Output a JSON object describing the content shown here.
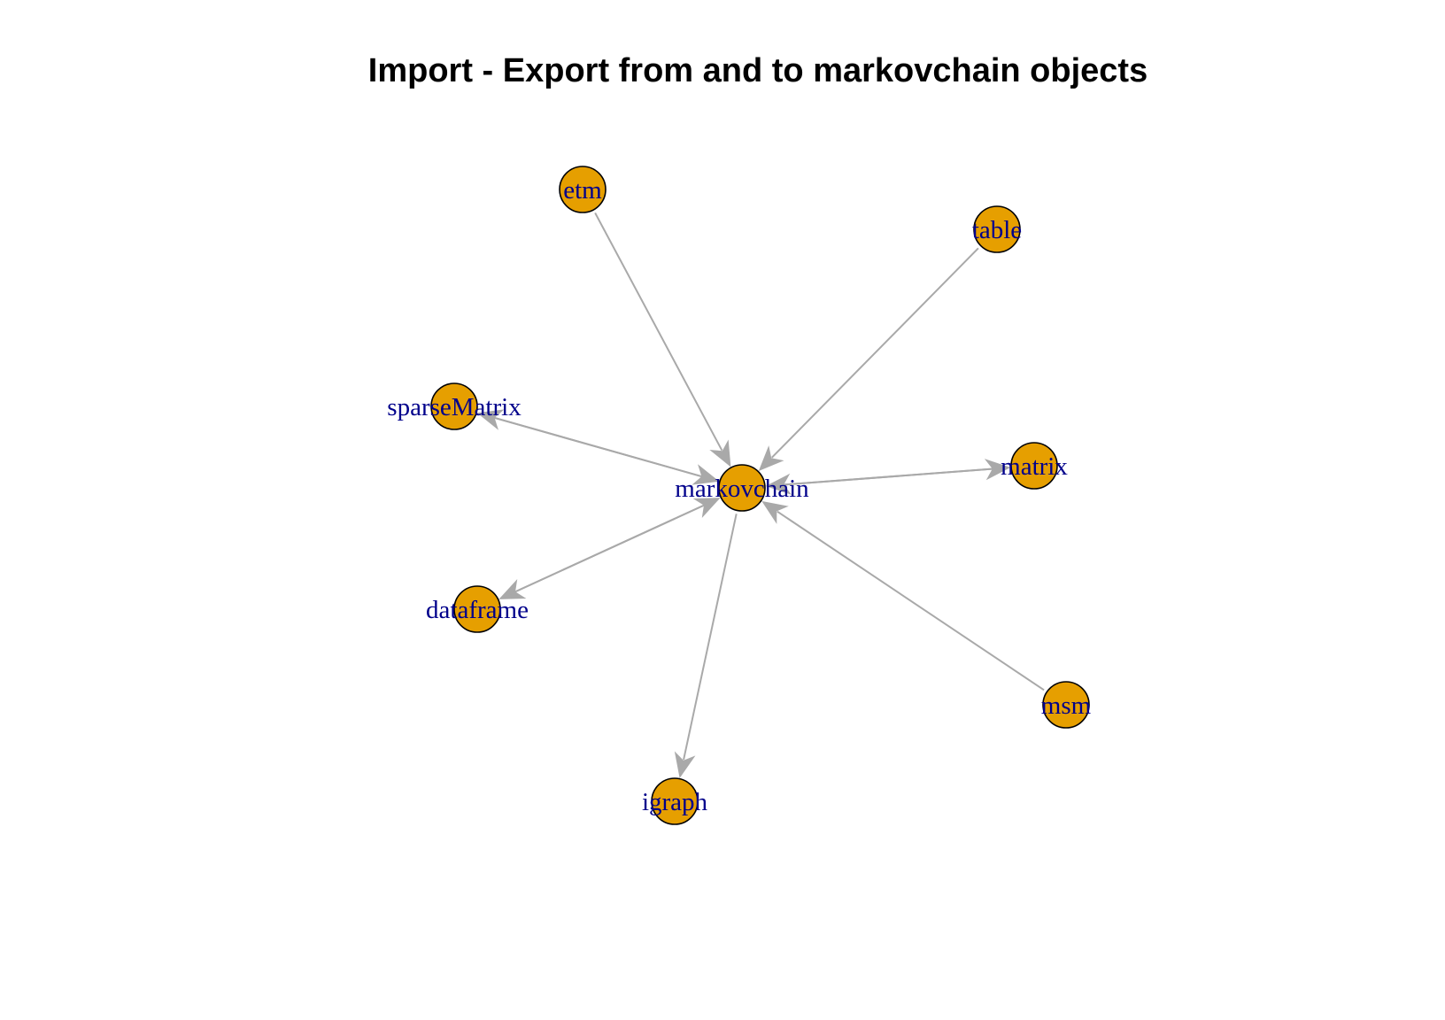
{
  "title": "Import - Export from and to markovchain objects",
  "style": {
    "node_fill": "#E69F00",
    "node_stroke": "#000000",
    "edge_color": "#A9A9A9",
    "label_color": "#00008B",
    "background": "#FFFFFF"
  },
  "nodes": [
    {
      "id": "markovchain",
      "label": "markovchain"
    },
    {
      "id": "etm",
      "label": "etm"
    },
    {
      "id": "table",
      "label": "table"
    },
    {
      "id": "sparseMatrix",
      "label": "sparseMatrix"
    },
    {
      "id": "matrix",
      "label": "matrix"
    },
    {
      "id": "dataframe",
      "label": "dataframe"
    },
    {
      "id": "msm",
      "label": "msm"
    },
    {
      "id": "igraph",
      "label": "igraph"
    }
  ],
  "edges": [
    {
      "from": "etm",
      "to": "markovchain"
    },
    {
      "from": "table",
      "to": "markovchain"
    },
    {
      "from": "msm",
      "to": "markovchain"
    },
    {
      "from": "markovchain",
      "to": "sparseMatrix"
    },
    {
      "from": "sparseMatrix",
      "to": "markovchain"
    },
    {
      "from": "markovchain",
      "to": "matrix"
    },
    {
      "from": "matrix",
      "to": "markovchain"
    },
    {
      "from": "markovchain",
      "to": "dataframe"
    },
    {
      "from": "dataframe",
      "to": "markovchain"
    },
    {
      "from": "markovchain",
      "to": "igraph"
    }
  ]
}
